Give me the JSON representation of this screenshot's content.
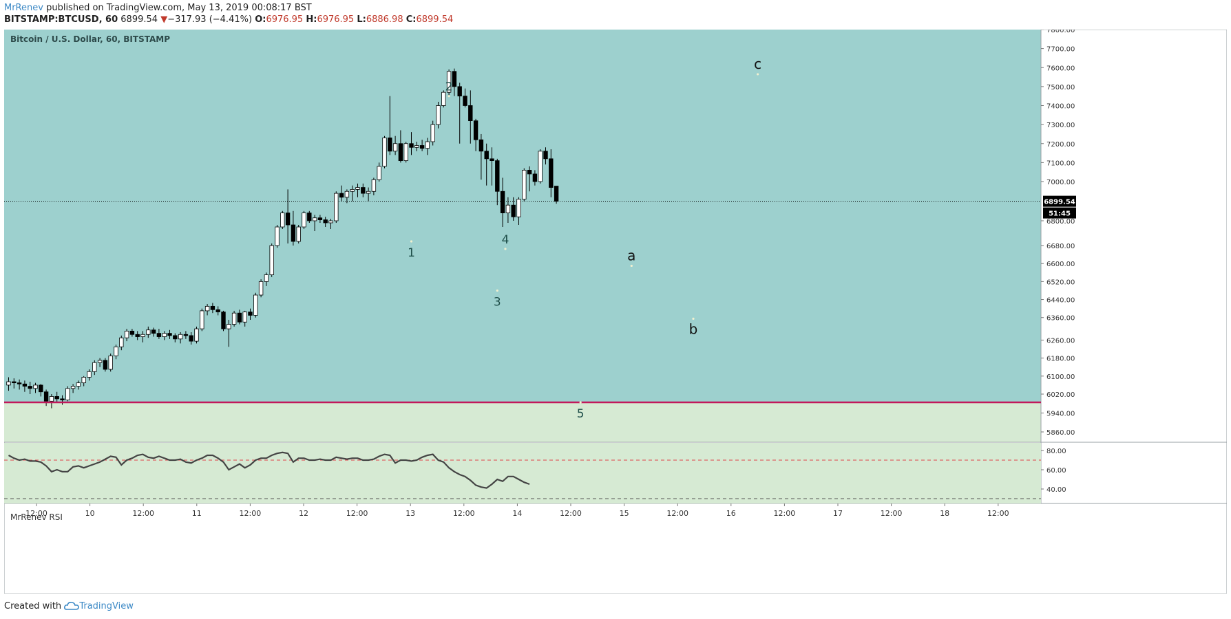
{
  "header": {
    "author": "MrRenev",
    "published_text": " published on TradingView.com, May 13, 2019 00:08:17 BST",
    "symbol_line": "BITSTAMP:BTCUSD, 60",
    "last": "6899.54",
    "change_arrow": "▼",
    "change": "−317.93 (−4.41%)",
    "o_label": "O:",
    "o_value": "6976.95",
    "h_label": "H:",
    "h_value": "6976.95",
    "l_label": "L:",
    "l_value": "6886.98",
    "c_label": "C:",
    "c_value": "6899.54"
  },
  "footer": {
    "created_with": "Created with",
    "brand": "TradingView",
    "brand_icon": "tradingview-cloud-icon"
  },
  "colors": {
    "upper_zone": "#9dd0ce",
    "lower_zone": "#d6ead3",
    "support_line": "#c2185b",
    "rsi_line": "#444444",
    "rsi_upper_band": "#e0424a",
    "candle_up": "#ffffff",
    "candle_down": "#000000",
    "price_badge": "#000000"
  },
  "chart_data": {
    "type": "candlestick",
    "title": "Bitcoin / U.S. Dollar, 60, BITSTAMP",
    "y_ticks": [
      7800,
      7700,
      7600,
      7500,
      7400,
      7300,
      7200,
      7100,
      7000,
      6800,
      6680,
      6600,
      6520,
      6440,
      6360,
      6260,
      6180,
      6100,
      6020,
      5940,
      5860
    ],
    "x_ticks": [
      "12:00",
      "10",
      "12:00",
      "11",
      "12:00",
      "12",
      "12:00",
      "13",
      "12:00",
      "14",
      "12:00",
      "15",
      "12:00",
      "16",
      "12:00",
      "17",
      "12:00",
      "18",
      "12:00"
    ],
    "current_price": 6899.54,
    "current_price_label": "6899.54",
    "countdown_label": "51:45",
    "support_level": 5985,
    "ohlc": [
      [
        6060,
        6095,
        6035,
        6075
      ],
      [
        6075,
        6090,
        6045,
        6070
      ],
      [
        6070,
        6085,
        6040,
        6065
      ],
      [
        6065,
        6080,
        6030,
        6055
      ],
      [
        6055,
        6075,
        6020,
        6045
      ],
      [
        6045,
        6070,
        6025,
        6060
      ],
      [
        6060,
        6065,
        6010,
        6030
      ],
      [
        6030,
        6040,
        5970,
        5990
      ],
      [
        5990,
        6020,
        5960,
        6010
      ],
      [
        6010,
        6030,
        5985,
        6000
      ],
      [
        6000,
        6015,
        5975,
        5995
      ],
      [
        5995,
        6055,
        5990,
        6045
      ],
      [
        6045,
        6065,
        6025,
        6055
      ],
      [
        6055,
        6080,
        6040,
        6070
      ],
      [
        6070,
        6100,
        6055,
        6095
      ],
      [
        6095,
        6130,
        6080,
        6120
      ],
      [
        6120,
        6170,
        6105,
        6160
      ],
      [
        6160,
        6180,
        6140,
        6170
      ],
      [
        6170,
        6180,
        6120,
        6130
      ],
      [
        6130,
        6200,
        6120,
        6190
      ],
      [
        6190,
        6240,
        6175,
        6230
      ],
      [
        6230,
        6280,
        6215,
        6270
      ],
      [
        6270,
        6310,
        6255,
        6300
      ],
      [
        6300,
        6310,
        6275,
        6285
      ],
      [
        6285,
        6300,
        6260,
        6275
      ],
      [
        6275,
        6300,
        6250,
        6285
      ],
      [
        6285,
        6320,
        6270,
        6305
      ],
      [
        6305,
        6315,
        6275,
        6290
      ],
      [
        6290,
        6310,
        6265,
        6275
      ],
      [
        6275,
        6300,
        6260,
        6290
      ],
      [
        6290,
        6305,
        6265,
        6280
      ],
      [
        6280,
        6290,
        6250,
        6265
      ],
      [
        6265,
        6295,
        6245,
        6285
      ],
      [
        6285,
        6300,
        6265,
        6280
      ],
      [
        6280,
        6295,
        6240,
        6255
      ],
      [
        6255,
        6320,
        6245,
        6310
      ],
      [
        6310,
        6400,
        6300,
        6390
      ],
      [
        6390,
        6420,
        6370,
        6410
      ],
      [
        6410,
        6425,
        6380,
        6395
      ],
      [
        6395,
        6410,
        6370,
        6385
      ],
      [
        6385,
        6390,
        6300,
        6310
      ],
      [
        6310,
        6350,
        6230,
        6330
      ],
      [
        6330,
        6390,
        6320,
        6380
      ],
      [
        6380,
        6395,
        6330,
        6340
      ],
      [
        6340,
        6390,
        6320,
        6385
      ],
      [
        6385,
        6400,
        6350,
        6370
      ],
      [
        6370,
        6470,
        6360,
        6460
      ],
      [
        6460,
        6530,
        6450,
        6520
      ],
      [
        6520,
        6560,
        6500,
        6550
      ],
      [
        6550,
        6690,
        6540,
        6680
      ],
      [
        6680,
        6780,
        6670,
        6770
      ],
      [
        6770,
        6850,
        6760,
        6840
      ],
      [
        6840,
        6960,
        6690,
        6780
      ],
      [
        6780,
        6850,
        6680,
        6700
      ],
      [
        6700,
        6780,
        6690,
        6770
      ],
      [
        6770,
        6850,
        6760,
        6840
      ],
      [
        6840,
        6850,
        6790,
        6800
      ],
      [
        6800,
        6830,
        6750,
        6815
      ],
      [
        6815,
        6830,
        6790,
        6805
      ],
      [
        6805,
        6820,
        6770,
        6790
      ],
      [
        6790,
        6810,
        6760,
        6800
      ],
      [
        6800,
        6950,
        6790,
        6940
      ],
      [
        6940,
        6980,
        6900,
        6920
      ],
      [
        6920,
        6960,
        6890,
        6950
      ],
      [
        6950,
        6980,
        6900,
        6960
      ],
      [
        6960,
        6990,
        6920,
        6970
      ],
      [
        6970,
        6990,
        6920,
        6940
      ],
      [
        6940,
        6970,
        6900,
        6950
      ],
      [
        6950,
        7020,
        6930,
        7010
      ],
      [
        7010,
        7100,
        7000,
        7080
      ],
      [
        7080,
        7240,
        7070,
        7230
      ],
      [
        7230,
        7450,
        7140,
        7160
      ],
      [
        7160,
        7240,
        7140,
        7200
      ],
      [
        7200,
        7270,
        7100,
        7110
      ],
      [
        7110,
        7210,
        7100,
        7200
      ],
      [
        7200,
        7260,
        7140,
        7180
      ],
      [
        7180,
        7210,
        7160,
        7190
      ],
      [
        7190,
        7220,
        7160,
        7175
      ],
      [
        7175,
        7230,
        7140,
        7210
      ],
      [
        7210,
        7320,
        7190,
        7300
      ],
      [
        7300,
        7420,
        7280,
        7400
      ],
      [
        7400,
        7480,
        7390,
        7470
      ],
      [
        7470,
        7590,
        7450,
        7580
      ],
      [
        7580,
        7595,
        7450,
        7500
      ],
      [
        7500,
        7520,
        7200,
        7450
      ],
      [
        7450,
        7490,
        7390,
        7400
      ],
      [
        7400,
        7480,
        7200,
        7320
      ],
      [
        7320,
        7330,
        7160,
        7220
      ],
      [
        7220,
        7250,
        7010,
        7160
      ],
      [
        7160,
        7200,
        6980,
        7120
      ],
      [
        7120,
        7180,
        6980,
        7110
      ],
      [
        7110,
        7120,
        6880,
        6950
      ],
      [
        6950,
        7020,
        6770,
        6840
      ],
      [
        6840,
        6920,
        6790,
        6880
      ],
      [
        6880,
        6920,
        6800,
        6820
      ],
      [
        6820,
        6920,
        6780,
        6910
      ],
      [
        6910,
        7070,
        6900,
        7060
      ],
      [
        7060,
        7080,
        6950,
        7040
      ],
      [
        7040,
        7060,
        6980,
        7000
      ],
      [
        7000,
        7170,
        6990,
        7160
      ],
      [
        7160,
        7180,
        7090,
        7120
      ],
      [
        7120,
        7170,
        6920,
        6970
      ],
      [
        6976.95,
        6976.95,
        6886.98,
        6899.54
      ]
    ],
    "wave_labels": [
      {
        "label": "1",
        "x": 75.0,
        "price": 6700
      },
      {
        "label": "2",
        "x": 82.0,
        "price": 7450
      },
      {
        "label": "3",
        "x": 91.0,
        "price": 6480
      },
      {
        "label": "4",
        "x": 92.5,
        "price": 6665
      },
      {
        "label": "5",
        "x": 106.5,
        "price": 5985
      },
      {
        "label": "a",
        "x": 116.0,
        "price": 6590
      },
      {
        "label": "b",
        "x": 127.5,
        "price": 6355
      },
      {
        "label": "c",
        "x": 139.5,
        "price": 7565
      }
    ],
    "rsi": {
      "name": "MrRenev RSI",
      "ticks": [
        80.0,
        60.0,
        40.0
      ],
      "upper_band": 70,
      "lower_band": 30,
      "values": [
        75,
        72,
        70,
        71,
        69,
        69,
        68,
        64,
        58,
        60,
        58,
        58,
        63,
        64,
        62,
        64,
        66,
        68,
        71,
        74,
        73,
        65,
        70,
        72,
        75,
        76,
        73,
        72,
        74,
        72,
        70,
        70,
        71,
        68,
        67,
        70,
        72,
        75,
        75,
        72,
        68,
        60,
        63,
        66,
        62,
        65,
        70,
        72,
        72,
        75,
        77,
        78,
        77,
        68,
        72,
        72,
        70,
        70,
        71,
        70,
        70,
        73,
        72,
        71,
        72,
        72,
        70,
        70,
        71,
        74,
        76,
        75,
        67,
        70,
        70,
        69,
        70,
        73,
        75,
        76,
        70,
        68,
        62,
        58,
        55,
        53,
        49,
        44,
        42,
        41,
        45,
        50,
        48,
        53,
        53,
        50,
        47,
        45
      ]
    }
  }
}
